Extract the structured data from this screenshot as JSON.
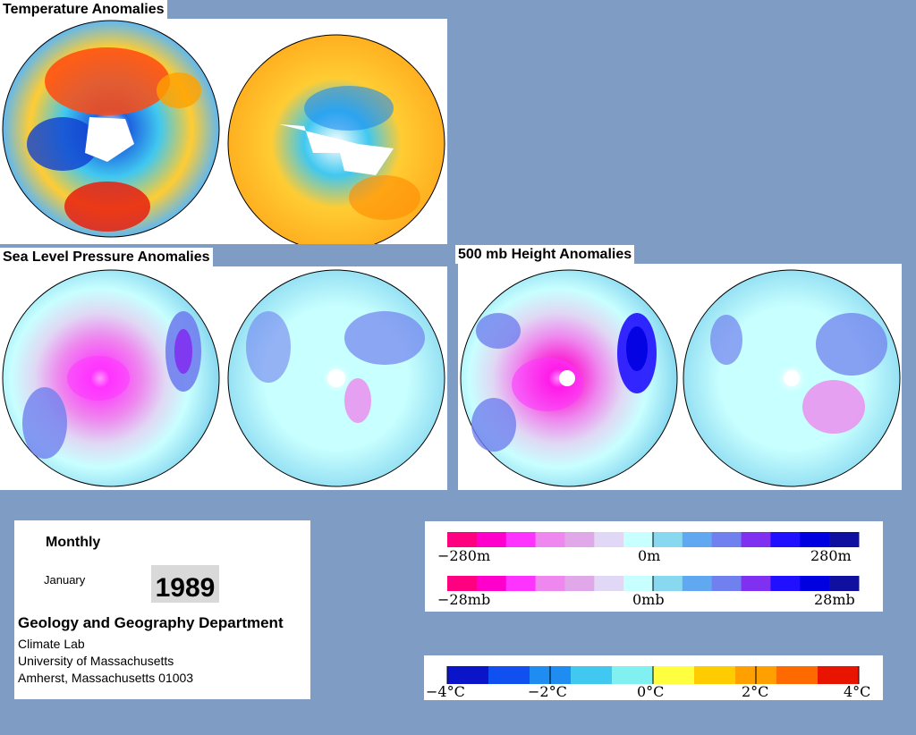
{
  "titles": {
    "temperature": "Temperature Anomalies",
    "slp": "Sea Level Pressure Anomalies",
    "height500": "500 mb Height Anomalies"
  },
  "info": {
    "period": "Monthly",
    "month": "January",
    "year": "1989",
    "department": "Geology and Geography Department",
    "lab": "Climate Lab",
    "university": "University of Massachusetts",
    "address": "Amherst, Massachusetts 01003"
  },
  "legends": {
    "height": {
      "min": "−280m",
      "mid": "0m",
      "max": "280m"
    },
    "pressure": {
      "min": "−28mb",
      "mid": "0mb",
      "max": "28mb"
    },
    "temperature": {
      "labels": [
        "−4°C",
        "−2°C",
        "0°C",
        "2°C",
        "4°C"
      ]
    }
  },
  "colors": {
    "background": "#7f9cc4",
    "anomaly_scale": [
      "#ff0080",
      "#ff00cc",
      "#ff33ff",
      "#ee88ee",
      "#e0a8e8",
      "#e0d8f4",
      "#c8ffff",
      "#88d8f0",
      "#60a8f0",
      "#7080ee",
      "#8030f0",
      "#2010ff",
      "#0000e0",
      "#1010a0"
    ],
    "temp_scale": [
      "#0a14c8",
      "#1050f0",
      "#1e8cf0",
      "#40c8f0",
      "#80f0f0",
      "#ffff40",
      "#ffcc00",
      "#ffa000",
      "#ff6a00",
      "#e81400"
    ]
  }
}
